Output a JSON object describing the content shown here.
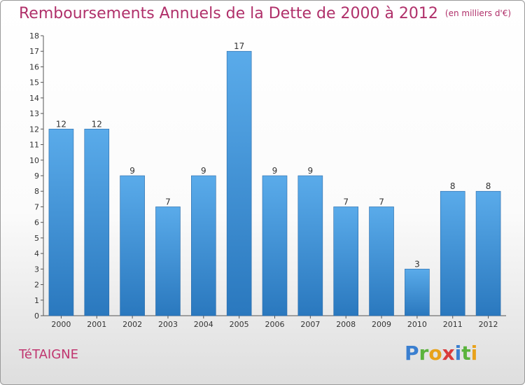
{
  "title": "Remboursements Annuels de la Dette de 2000 à 2012",
  "unit": "(en milliers d'€)",
  "commune": "TéTAIGNE",
  "logo": {
    "text": "Proxiti"
  },
  "colors": {
    "bar": "#4b9de0",
    "bar_dark": "#2a78be",
    "title": "#b0306a"
  },
  "chart_data": {
    "type": "bar",
    "title": "Remboursements Annuels de la Dette de 2000 à 2012",
    "categories": [
      "2000",
      "2001",
      "2002",
      "2003",
      "2004",
      "2005",
      "2006",
      "2007",
      "2008",
      "2009",
      "2010",
      "2011",
      "2012"
    ],
    "values": [
      12,
      12,
      9,
      7,
      9,
      17,
      9,
      9,
      7,
      7,
      3,
      8,
      8
    ],
    "ylim": [
      0,
      18
    ],
    "yticks": [
      0,
      1,
      2,
      3,
      4,
      5,
      6,
      7,
      8,
      9,
      10,
      11,
      12,
      13,
      14,
      15,
      16,
      17,
      18
    ],
    "xlabel": "",
    "ylabel": "",
    "grid": false
  }
}
